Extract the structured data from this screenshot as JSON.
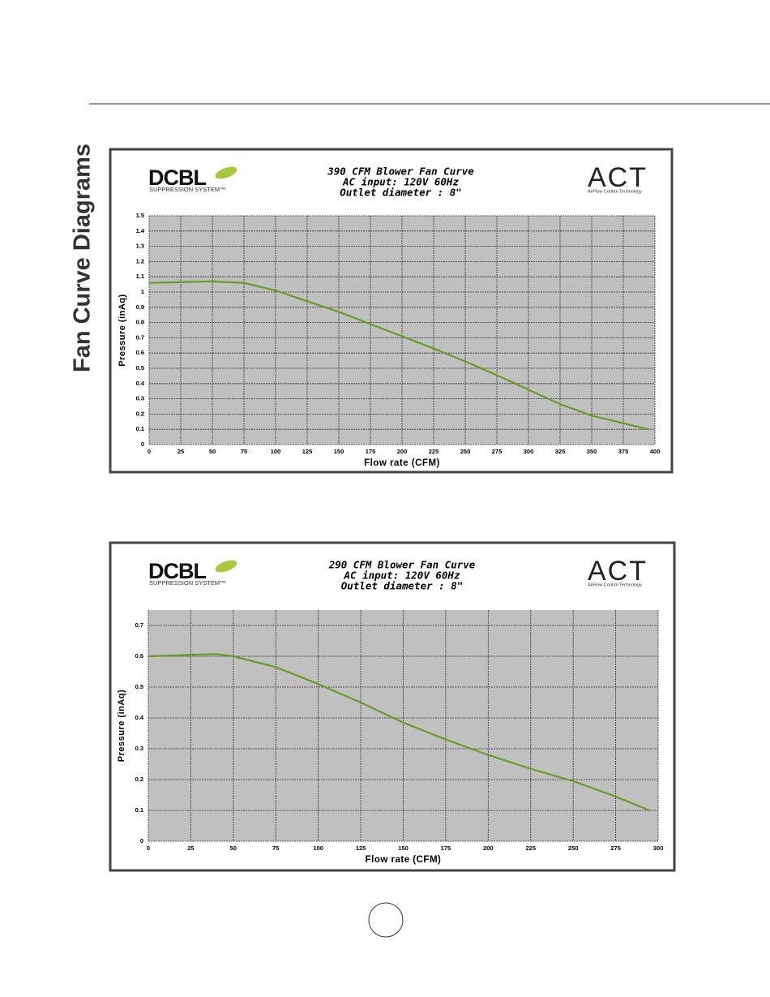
{
  "heading": "Fan Curve Diagrams",
  "chart_data": [
    {
      "type": "line",
      "title": "390 CFM Blower Fan Curve",
      "subtitle": [
        "AC input: 120V  60Hz",
        "Outlet diameter : 8\""
      ],
      "logos": {
        "left": "DCBL",
        "left_sub": "SUPPRESSION SYSTEM™",
        "right": "ACT",
        "right_sub": "AirFlow Control Technology"
      },
      "x_label": "Flow rate (CFM)",
      "y_label": "Pressure (inAq)",
      "x": [
        0,
        25,
        50,
        75,
        100,
        125,
        150,
        175,
        200,
        225,
        250,
        275,
        300,
        325,
        350,
        375,
        395
      ],
      "values": [
        1.06,
        1.065,
        1.07,
        1.06,
        1.01,
        0.94,
        0.87,
        0.79,
        0.71,
        0.63,
        0.545,
        0.455,
        0.36,
        0.265,
        0.19,
        0.14,
        0.1
      ],
      "color": "#6a9a2e",
      "xlim": [
        0,
        400
      ],
      "xticks": [
        0,
        25,
        50,
        75,
        100,
        125,
        150,
        175,
        200,
        225,
        250,
        275,
        300,
        325,
        350,
        375,
        400
      ],
      "ylim": [
        0,
        1.5
      ],
      "yticks": [
        0,
        0.1,
        0.2,
        0.3,
        0.4,
        0.5,
        0.6,
        0.7,
        0.8,
        0.9,
        1,
        1.1,
        1.2,
        1.3,
        1.4,
        1.5
      ],
      "grid": true
    },
    {
      "type": "line",
      "title": "290 CFM Blower Fan Curve",
      "subtitle": [
        "AC input: 120V  60Hz",
        "Outlet diameter : 8\""
      ],
      "logos": {
        "left": "DCBL",
        "left_sub": "SUPPRESSION SYSTEM™",
        "right": "ACT",
        "right_sub": "AirFlow Control Technology"
      },
      "x_label": "Flow rate (CFM)",
      "y_label": "Pressure (inAq)",
      "x": [
        0,
        25,
        40,
        50,
        75,
        100,
        125,
        150,
        175,
        200,
        225,
        250,
        275,
        295
      ],
      "values": [
        0.6,
        0.605,
        0.607,
        0.6,
        0.565,
        0.51,
        0.45,
        0.385,
        0.33,
        0.28,
        0.235,
        0.195,
        0.145,
        0.1
      ],
      "color": "#6a9a2e",
      "xlim": [
        0,
        300
      ],
      "xticks": [
        0,
        25,
        50,
        75,
        100,
        125,
        150,
        175,
        200,
        225,
        250,
        275,
        300
      ],
      "ylim": [
        0,
        0.75
      ],
      "yticks": [
        0,
        0.1,
        0.2,
        0.3,
        0.4,
        0.5,
        0.6,
        0.7
      ],
      "grid": true
    }
  ]
}
